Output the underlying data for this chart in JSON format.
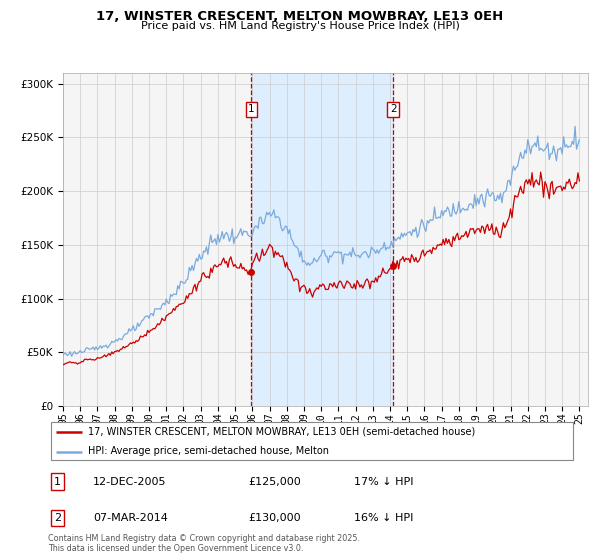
{
  "title": "17, WINSTER CRESCENT, MELTON MOWBRAY, LE13 0EH",
  "subtitle": "Price paid vs. HM Land Registry's House Price Index (HPI)",
  "ylim": [
    0,
    310000
  ],
  "xlim_start": 1995.0,
  "xlim_end": 2025.5,
  "transaction1": {
    "date": 2005.95,
    "price": 125000,
    "label": "1",
    "text": "12-DEC-2005",
    "price_str": "£125,000",
    "hpi_str": "17% ↓ HPI"
  },
  "transaction2": {
    "date": 2014.18,
    "price": 130000,
    "label": "2",
    "text": "07-MAR-2014",
    "price_str": "£130,000",
    "hpi_str": "16% ↓ HPI"
  },
  "red_line_color": "#cc0000",
  "blue_line_color": "#7aaadd",
  "shade_color": "#ddeeff",
  "vline_color": "#cc0000",
  "background_color": "#f5f5f5",
  "grid_color": "#cccccc",
  "legend_label_red": "17, WINSTER CRESCENT, MELTON MOWBRAY, LE13 0EH (semi-detached house)",
  "legend_label_blue": "HPI: Average price, semi-detached house, Melton",
  "footer": "Contains HM Land Registry data © Crown copyright and database right 2025.\nThis data is licensed under the Open Government Licence v3.0."
}
